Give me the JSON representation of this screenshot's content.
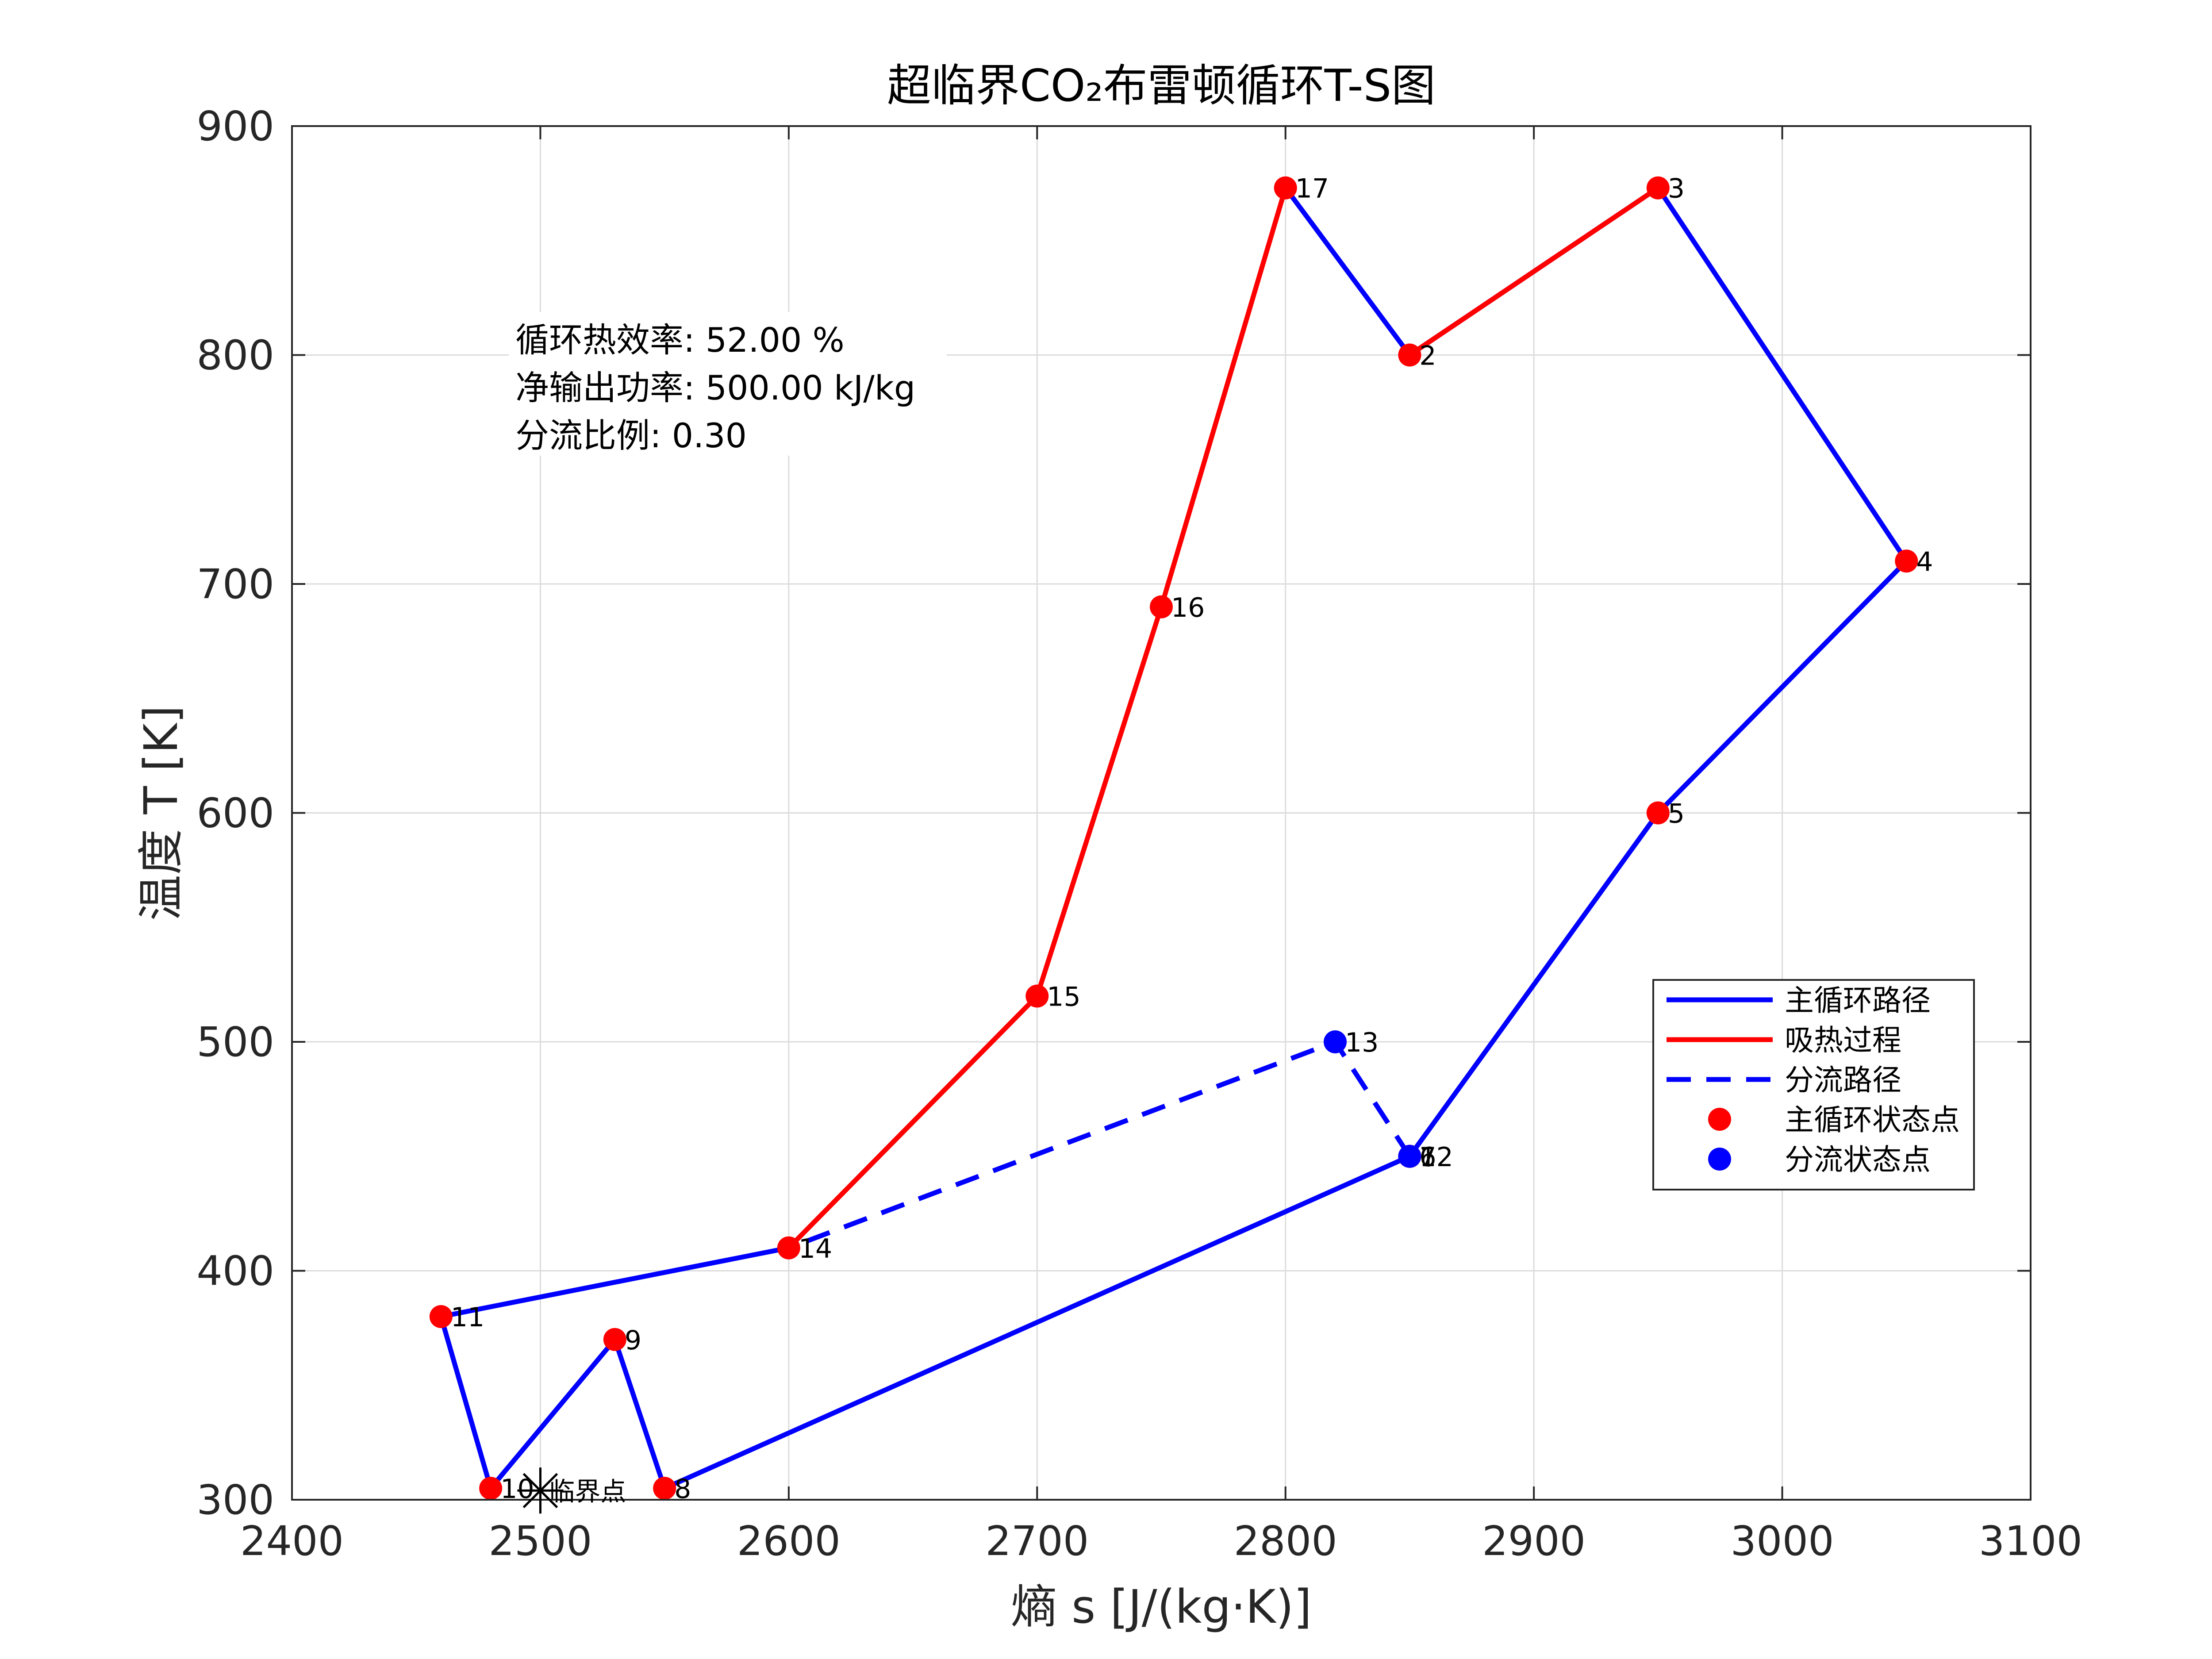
{
  "chart_data": {
    "type": "line",
    "title": "超临界CO₂布雷顿循环T-S图",
    "xlabel": "熵 s [J/(kg·K)]",
    "ylabel": "温度 T [K]",
    "xlim": [
      2400,
      3100
    ],
    "ylim": [
      300,
      900
    ],
    "xticks": [
      2400,
      2500,
      2600,
      2700,
      2800,
      2900,
      3000,
      3100
    ],
    "yticks": [
      300,
      400,
      500,
      600,
      700,
      800,
      900
    ],
    "grid": true,
    "legend_position": "lower-right",
    "annotations": [
      "循环热效率: 52.00 %",
      "净输出功率: 500.00 kJ/kg",
      "分流比例: 0.30"
    ],
    "states": [
      {
        "label": "2",
        "s": 2850,
        "T": 800,
        "color": "#ff0000"
      },
      {
        "label": "3",
        "s": 2950,
        "T": 873,
        "color": "#ff0000"
      },
      {
        "label": "4",
        "s": 3050,
        "T": 710,
        "color": "#ff0000"
      },
      {
        "label": "5",
        "s": 2950,
        "T": 600,
        "color": "#ff0000"
      },
      {
        "label": "6",
        "s": 2850,
        "T": 450,
        "color": "#ff0000"
      },
      {
        "label": "7",
        "s": 2850,
        "T": 450,
        "color": "#ff0000"
      },
      {
        "label": "8",
        "s": 2550,
        "T": 305,
        "color": "#ff0000"
      },
      {
        "label": "9",
        "s": 2530,
        "T": 370,
        "color": "#ff0000"
      },
      {
        "label": "10",
        "s": 2480,
        "T": 305,
        "color": "#ff0000"
      },
      {
        "label": "11",
        "s": 2460,
        "T": 380,
        "color": "#ff0000"
      },
      {
        "label": "14",
        "s": 2600,
        "T": 410,
        "color": "#ff0000"
      },
      {
        "label": "15",
        "s": 2700,
        "T": 520,
        "color": "#ff0000"
      },
      {
        "label": "16",
        "s": 2750,
        "T": 690,
        "color": "#ff0000"
      },
      {
        "label": "17",
        "s": 2800,
        "T": 873,
        "color": "#ff0000"
      },
      {
        "label": "13",
        "s": 2820,
        "T": 500,
        "color": "#0000ff"
      },
      {
        "label": "12",
        "s": 2850,
        "T": 450,
        "color": "#0000ff"
      }
    ],
    "series": [
      {
        "name": "主循环路径",
        "color": "#0000ff",
        "dash": "solid",
        "s": [
          2800,
          2850,
          2950,
          3050,
          2950,
          2850,
          2850,
          2550,
          2530,
          2480,
          2460,
          2600
        ],
        "T": [
          873,
          800,
          873,
          710,
          600,
          450,
          450,
          305,
          370,
          305,
          380,
          410
        ]
      },
      {
        "name": "吸热过程",
        "color": "#ff0000",
        "dash": "solid",
        "s": [
          2600,
          2700,
          2750,
          2800
        ],
        "T": [
          410,
          520,
          690,
          873
        ]
      },
      {
        "name": "吸热过程",
        "color": "#ff0000",
        "dash": "solid",
        "legend": false,
        "s": [
          2850,
          2950
        ],
        "T": [
          800,
          873
        ]
      },
      {
        "name": "分流路径",
        "color": "#0000ff",
        "dash": "dashed",
        "s": [
          2850,
          2820,
          2600
        ],
        "T": [
          450,
          500,
          410
        ]
      }
    ],
    "critical_point": {
      "label": "临界点",
      "s": 2500,
      "T": 304
    },
    "legend": [
      {
        "label": "主循环路径",
        "kind": "line",
        "color": "#0000ff",
        "dash": "solid"
      },
      {
        "label": "吸热过程",
        "kind": "line",
        "color": "#ff0000",
        "dash": "solid"
      },
      {
        "label": "分流路径",
        "kind": "line",
        "color": "#0000ff",
        "dash": "dashed"
      },
      {
        "label": "主循环状态点",
        "kind": "marker",
        "color": "#ff0000"
      },
      {
        "label": "分流状态点",
        "kind": "marker",
        "color": "#0000ff"
      }
    ]
  }
}
